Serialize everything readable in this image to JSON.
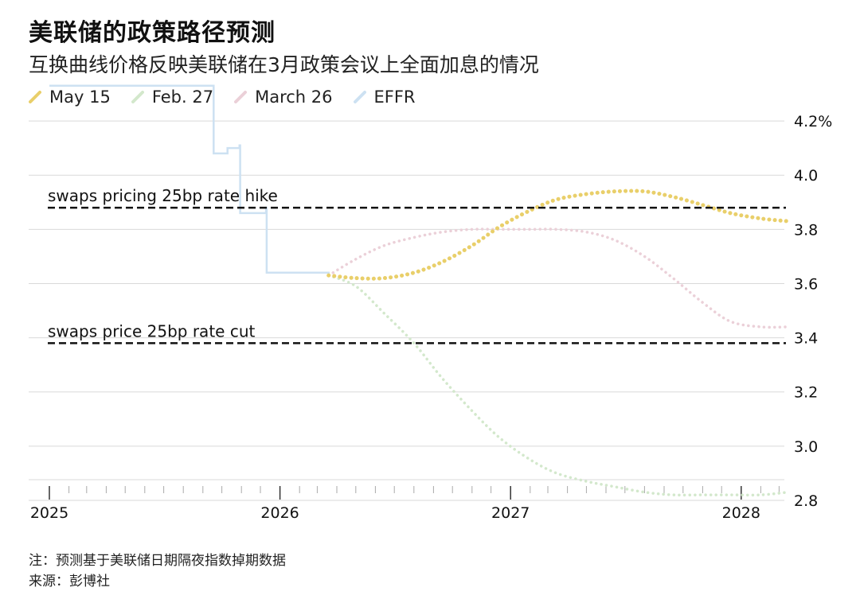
{
  "title": "美联储的政策路径预测",
  "subtitle": "互换曲线价格反映美联储在3月政策会议上全面加息的情况",
  "footnote": "注：预测基于美联储日期隔夜指数掉期数据",
  "source": "来源：彭博社",
  "chart_data": {
    "type": "line",
    "title": "美联储的政策路径预测",
    "subtitle": "互换曲线价格反映美联储在3月政策会议上全面加息的情况",
    "xlabel": "",
    "ylabel": "",
    "x_range": [
      "2025-01-01",
      "2028-04-01"
    ],
    "ylim": [
      2.7,
      4.3
    ],
    "x_ticks": [
      "2025",
      "2026",
      "2027",
      "2028"
    ],
    "y_ticks": [
      "2.8",
      "3.0",
      "3.2",
      "3.4",
      "3.6",
      "3.8",
      "4.0",
      "4.2%"
    ],
    "y_tick_values": [
      2.8,
      3.0,
      3.2,
      3.4,
      3.6,
      3.8,
      4.0,
      4.2
    ],
    "grid": true,
    "legend_position": "top-left",
    "series": [
      {
        "name": "May 15",
        "color": "#e9cf6a",
        "style": "dotted-thick",
        "points": [
          [
            "2026-03-19",
            3.63
          ],
          [
            "2026-05-01",
            3.62
          ],
          [
            "2026-06-15",
            3.62
          ],
          [
            "2026-08-01",
            3.64
          ],
          [
            "2026-09-15",
            3.68
          ],
          [
            "2026-11-01",
            3.74
          ],
          [
            "2026-12-15",
            3.81
          ],
          [
            "2027-02-01",
            3.87
          ],
          [
            "2027-03-15",
            3.91
          ],
          [
            "2027-05-01",
            3.93
          ],
          [
            "2027-06-15",
            3.94
          ],
          [
            "2027-08-01",
            3.94
          ],
          [
            "2027-09-15",
            3.92
          ],
          [
            "2027-11-01",
            3.89
          ],
          [
            "2027-12-15",
            3.86
          ],
          [
            "2028-02-01",
            3.84
          ],
          [
            "2028-03-15",
            3.83
          ]
        ]
      },
      {
        "name": "Feb. 27",
        "color": "#d3e8cc",
        "style": "dotted",
        "points": [
          [
            "2026-03-19",
            3.63
          ],
          [
            "2026-05-01",
            3.59
          ],
          [
            "2026-06-15",
            3.49
          ],
          [
            "2026-08-01",
            3.38
          ],
          [
            "2026-09-15",
            3.25
          ],
          [
            "2026-11-01",
            3.13
          ],
          [
            "2026-12-15",
            3.03
          ],
          [
            "2027-02-01",
            2.95
          ],
          [
            "2027-03-15",
            2.9
          ],
          [
            "2027-05-01",
            2.87
          ],
          [
            "2027-06-15",
            2.85
          ],
          [
            "2027-08-01",
            2.83
          ],
          [
            "2027-09-15",
            2.82
          ],
          [
            "2027-11-01",
            2.82
          ],
          [
            "2027-12-15",
            2.82
          ],
          [
            "2028-02-01",
            2.82
          ],
          [
            "2028-03-15",
            2.83
          ]
        ]
      },
      {
        "name": "March 26",
        "color": "#ebd0d8",
        "style": "dotted",
        "points": [
          [
            "2026-03-19",
            3.63
          ],
          [
            "2026-05-01",
            3.69
          ],
          [
            "2026-06-15",
            3.74
          ],
          [
            "2026-08-01",
            3.77
          ],
          [
            "2026-09-15",
            3.79
          ],
          [
            "2026-11-01",
            3.8
          ],
          [
            "2026-12-15",
            3.8
          ],
          [
            "2027-02-01",
            3.8
          ],
          [
            "2027-03-15",
            3.8
          ],
          [
            "2027-05-01",
            3.79
          ],
          [
            "2027-06-15",
            3.76
          ],
          [
            "2027-08-01",
            3.7
          ],
          [
            "2027-09-15",
            3.62
          ],
          [
            "2027-11-01",
            3.53
          ],
          [
            "2027-12-15",
            3.46
          ],
          [
            "2028-02-01",
            3.44
          ],
          [
            "2028-03-15",
            3.44
          ]
        ]
      },
      {
        "name": "EFFR",
        "color": "#cde1f2",
        "style": "step",
        "points": [
          [
            "2025-01-01",
            4.33
          ],
          [
            "2025-09-17",
            4.33
          ],
          [
            "2025-09-18",
            4.08
          ],
          [
            "2025-10-10",
            4.1
          ],
          [
            "2025-10-29",
            4.11
          ],
          [
            "2025-10-30",
            3.86
          ],
          [
            "2025-12-10",
            3.88
          ],
          [
            "2025-12-11",
            3.64
          ],
          [
            "2026-03-19",
            3.63
          ]
        ]
      }
    ],
    "annotations": [
      {
        "label": "swaps pricing 25bp rate hike",
        "y": 3.88,
        "style": "dashed"
      },
      {
        "label": "swaps price 25bp rate cut",
        "y": 3.38,
        "style": "dashed"
      }
    ]
  }
}
